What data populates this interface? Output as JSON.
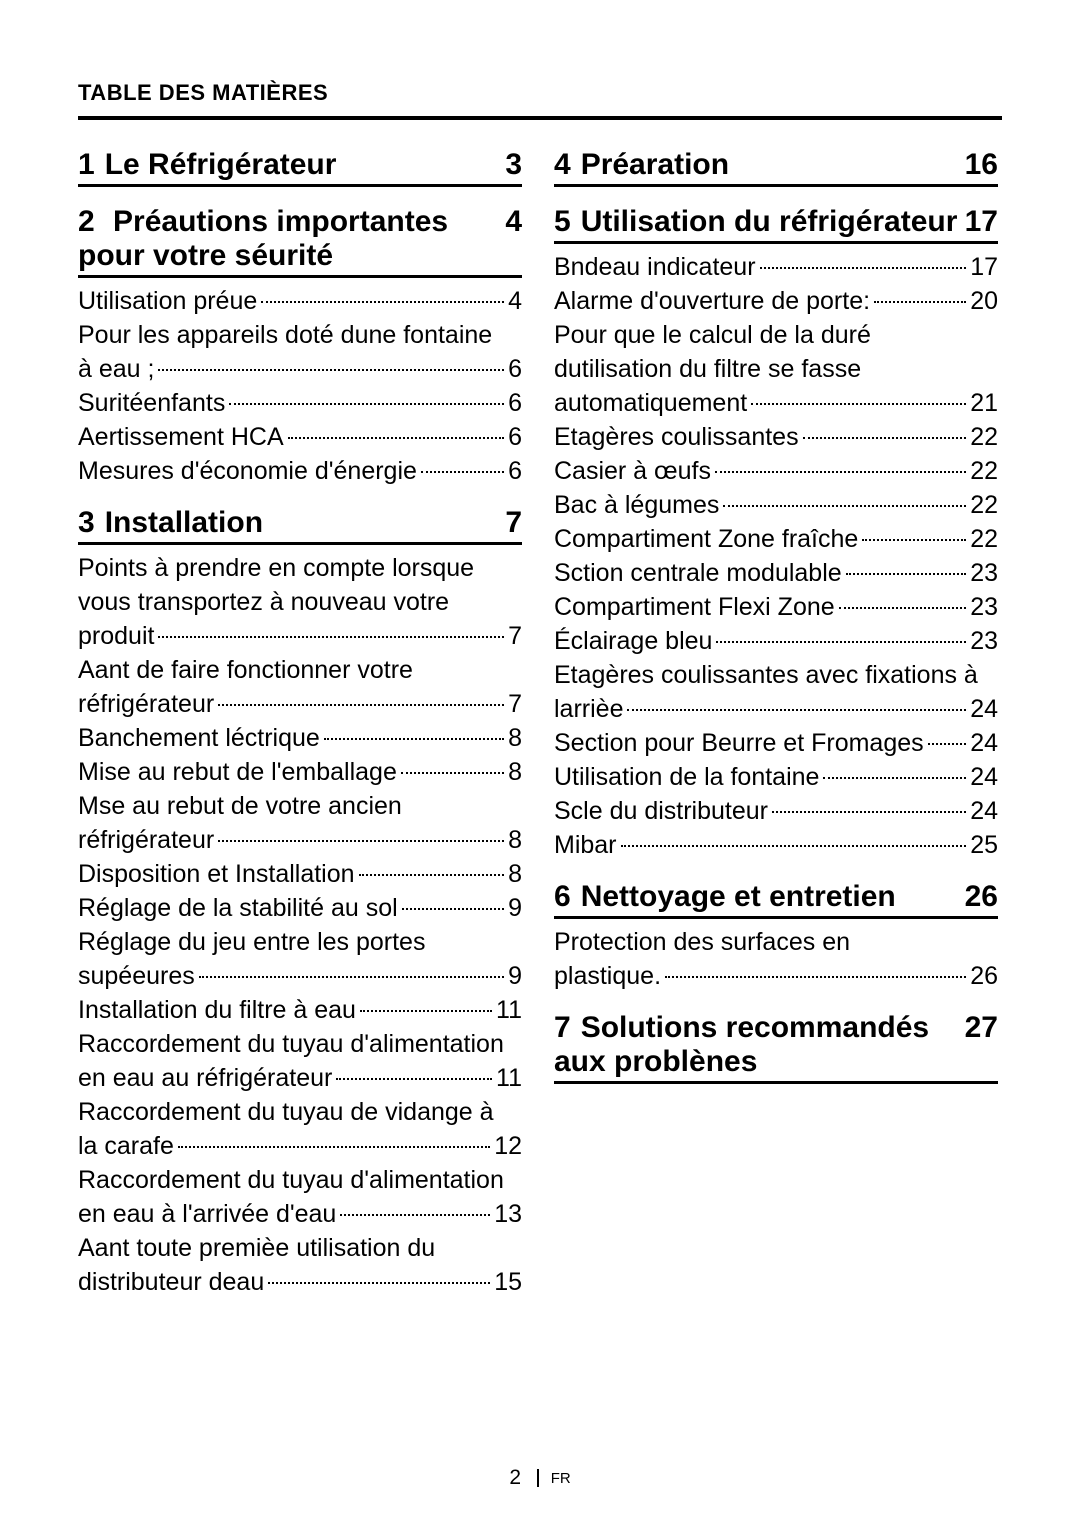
{
  "header": "TABLE DES MATIÈRES",
  "footer": {
    "page": "2",
    "lang": "FR"
  },
  "sections": [
    {
      "num": "1",
      "title": "Le Réfrigérateur",
      "page": "3",
      "column": 0,
      "items": []
    },
    {
      "num": "2",
      "title": " Préautions importantes pour votre séurité",
      "page": "4",
      "column": 0,
      "items": [
        {
          "lines": [
            "Utilisation préue"
          ],
          "page": "4"
        },
        {
          "lines": [
            "Pour les appareils doté dune fontaine",
            "à eau ;"
          ],
          "page": "6"
        },
        {
          "lines": [
            "Suritéenfants"
          ],
          "page": "6"
        },
        {
          "lines": [
            "Aertissement HCA"
          ],
          "page": "6"
        },
        {
          "lines": [
            "Mesures d'économie d'énergie"
          ],
          "page": "6"
        }
      ]
    },
    {
      "num": "3",
      "title": "Installation",
      "page": "7",
      "column": 0,
      "items": [
        {
          "lines": [
            "Points à prendre en compte lorsque",
            "vous transportez à nouveau votre",
            "produit"
          ],
          "page": "7"
        },
        {
          "lines": [
            "Aant de faire fonctionner votre",
            "réfrigérateur"
          ],
          "page": "7"
        },
        {
          "lines": [
            "Banchement léctrique"
          ],
          "page": "8"
        },
        {
          "lines": [
            "Mise au rebut de l'emballage"
          ],
          "page": "8"
        },
        {
          "lines": [
            "Mse au rebut de votre ancien",
            "réfrigérateur"
          ],
          "page": "8"
        },
        {
          "lines": [
            "Disposition et Installation"
          ],
          "page": "8"
        },
        {
          "lines": [
            "Réglage de la stabilité au sol"
          ],
          "page": "9"
        },
        {
          "lines": [
            "Réglage du jeu entre les portes",
            "supéeures"
          ],
          "page": "9"
        },
        {
          "lines": [
            "Installation du filtre à eau"
          ],
          "page": "11"
        },
        {
          "lines": [
            "Raccordement du tuyau d'alimentation",
            "en eau au réfrigérateur"
          ],
          "page": "11"
        },
        {
          "lines": [
            "Raccordement du tuyau de vidange à",
            "la carafe"
          ],
          "page": "12"
        },
        {
          "lines": [
            "Raccordement du tuyau d'alimentation",
            "en eau à l'arrivée d'eau"
          ],
          "page": "13"
        },
        {
          "lines": [
            "Aant toute premièe utilisation du",
            "distributeur deau"
          ],
          "page": "15"
        }
      ]
    },
    {
      "num": "4",
      "title": "Préaration",
      "page": "16",
      "column": 1,
      "items": []
    },
    {
      "num": "5",
      "title": "Utilisation du réfrigérateur",
      "page": "17",
      "column": 1,
      "items": [
        {
          "lines": [
            "Bndeau indicateur"
          ],
          "page": "17"
        },
        {
          "lines": [
            "Alarme d'ouverture de porte:"
          ],
          "page": "20"
        },
        {
          "lines": [
            "Pour que le calcul de la duré",
            "dutilisation du filtre se fasse",
            "automatiquement"
          ],
          "page": "21"
        },
        {
          "lines": [
            "Etagères coulissantes"
          ],
          "page": "22"
        },
        {
          "lines": [
            "Casier à œufs"
          ],
          "page": "22"
        },
        {
          "lines": [
            "Bac à légumes"
          ],
          "page": "22"
        },
        {
          "lines": [
            "Compartiment Zone fraîche"
          ],
          "page": "22"
        },
        {
          "lines": [
            "Sction centrale modulable"
          ],
          "page": "23"
        },
        {
          "lines": [
            "Compartiment Flexi Zone"
          ],
          "page": "23"
        },
        {
          "lines": [
            "Éclairage bleu"
          ],
          "page": "23"
        },
        {
          "lines": [
            "Etagères coulissantes avec fixations à",
            "larrièe"
          ],
          "page": "24"
        },
        {
          "lines": [
            "Section pour Beurre et Fromages"
          ],
          "page": "24"
        },
        {
          "lines": [
            "Utilisation de la fontaine"
          ],
          "page": "24"
        },
        {
          "lines": [
            "Scle du distributeur"
          ],
          "page": "24"
        },
        {
          "lines": [
            "Mibar"
          ],
          "page": "25"
        }
      ]
    },
    {
      "num": "6",
      "title": "Nettoyage et entretien",
      "page": "26",
      "column": 1,
      "items": [
        {
          "lines": [
            "Protection des surfaces en",
            "plastique."
          ],
          "page": "26"
        }
      ]
    },
    {
      "num": "7",
      "title": "Solutions recommandés aux problènes",
      "page": "27",
      "column": 1,
      "items": []
    }
  ]
}
